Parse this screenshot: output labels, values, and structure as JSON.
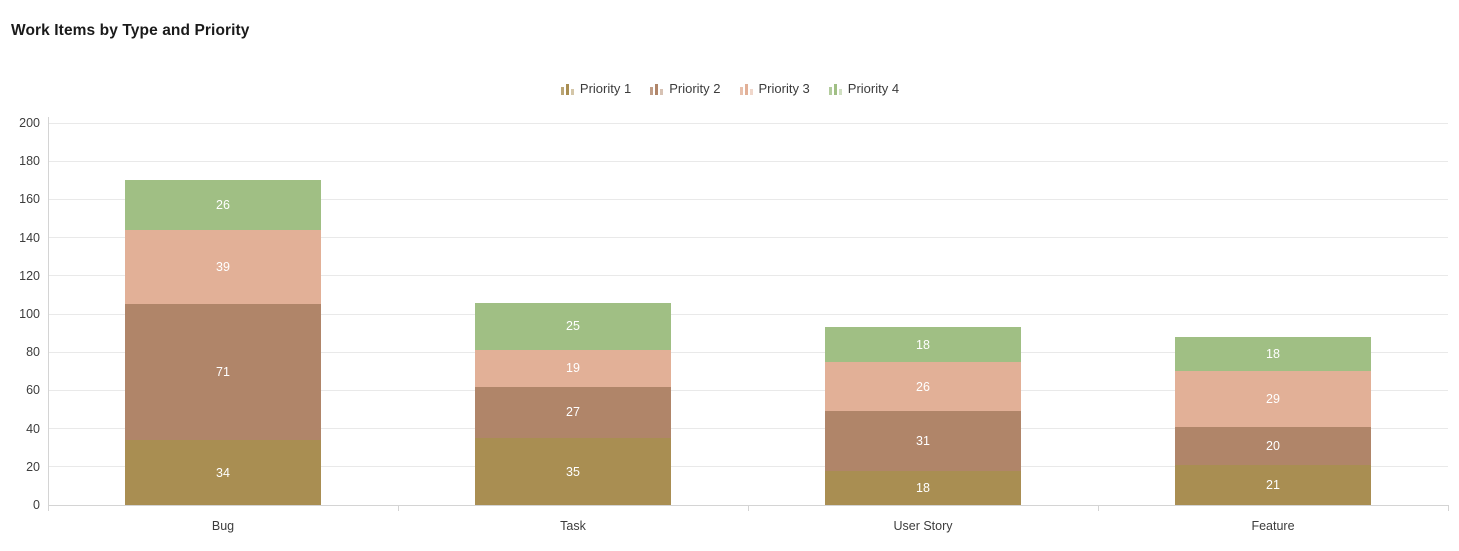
{
  "title": "Work Items by Type and Priority",
  "chart_data": {
    "type": "bar",
    "stacked": true,
    "title": "Work Items by Type and Priority",
    "categories": [
      "Bug",
      "Task",
      "User Story",
      "Feature"
    ],
    "series": [
      {
        "name": "Priority 1",
        "color": "#a98e52",
        "values": [
          34,
          35,
          18,
          21
        ]
      },
      {
        "name": "Priority 2",
        "color": "#b08569",
        "values": [
          71,
          27,
          31,
          20
        ]
      },
      {
        "name": "Priority 3",
        "color": "#e2b097",
        "values": [
          39,
          19,
          26,
          29
        ]
      },
      {
        "name": "Priority 4",
        "color": "#a0bf84",
        "values": [
          26,
          25,
          18,
          18
        ]
      }
    ],
    "stack_totals": [
      170,
      106,
      93,
      88
    ],
    "xlabel": "",
    "ylabel": "",
    "ylim": [
      0,
      200
    ],
    "yticks": [
      0,
      20,
      40,
      60,
      80,
      100,
      120,
      140,
      160,
      180,
      200
    ],
    "grid": true,
    "legend_position": "top-center",
    "value_label_position": "inside-center"
  },
  "colors": {
    "grid": "#e9e9e9",
    "axis": "#d4d4d4",
    "tick_text": "#3d3d3d",
    "title_text": "#1a1a1a",
    "value_label_text": "#ffffff",
    "background": "#ffffff"
  }
}
